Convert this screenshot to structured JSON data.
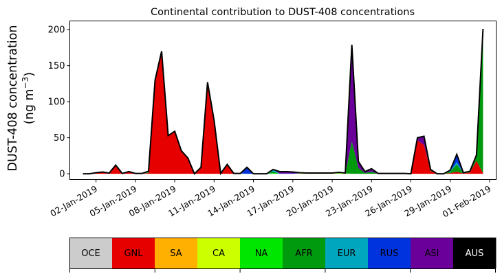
{
  "chart_data": {
    "type": "area",
    "stacked": true,
    "title": "Continental contribution to DUST-408 concentrations",
    "ylabel_line1": "DUST-408 concentration",
    "ylabel_line2": "(ng m",
    "ylabel_unit_exp": "−3",
    "ylabel_close": ")",
    "xlabel": "",
    "ylim": [
      -8,
      212
    ],
    "yticks": [
      0,
      50,
      100,
      150,
      200
    ],
    "x_start": "2019-01-01T00:00",
    "x_step_hours": 12,
    "xlim": [
      "2018-12-31T00:00",
      "2019-02-01T12:00"
    ],
    "xticks": [
      "02-Jan-2019",
      "05-Jan-2019",
      "08-Jan-2019",
      "11-Jan-2019",
      "14-Jan-2019",
      "17-Jan-2019",
      "20-Jan-2019",
      "23-Jan-2019",
      "26-Jan-2019",
      "29-Jan-2019",
      "01-Feb-2019"
    ],
    "xtick_dates": [
      "2019-01-02",
      "2019-01-05",
      "2019-01-08",
      "2019-01-11",
      "2019-01-14",
      "2019-01-17",
      "2019-01-20",
      "2019-01-23",
      "2019-01-26",
      "2019-01-29",
      "2019-02-01"
    ],
    "grid": false,
    "legend": "colorbar-bottom",
    "series": [
      {
        "name": "OCE",
        "color": "#cccccc",
        "values": [
          0,
          0,
          0,
          0,
          0,
          0,
          0,
          0,
          0,
          0,
          0,
          0,
          0,
          0,
          0,
          0,
          0,
          0,
          0,
          0,
          0,
          0,
          0,
          0,
          0,
          0,
          0,
          0,
          0,
          0,
          0,
          0,
          0,
          0,
          0,
          0,
          0,
          0,
          0,
          0,
          0,
          0,
          0,
          0,
          0,
          0,
          0,
          0,
          0,
          0,
          0,
          0,
          0,
          0,
          0,
          0,
          0,
          0,
          0,
          0,
          0,
          0
        ]
      },
      {
        "name": "GNL",
        "color": "#e60000",
        "values": [
          0,
          0,
          1,
          2,
          1,
          12,
          0.5,
          3,
          0.5,
          0.5,
          1,
          130,
          170,
          53,
          59,
          32,
          22,
          0,
          9,
          127,
          74,
          0.5,
          13,
          0,
          0,
          0,
          0,
          0,
          0,
          0,
          0,
          0,
          0,
          0,
          0,
          0,
          0,
          0,
          0,
          0,
          0,
          0,
          0,
          0,
          0,
          0,
          0,
          0,
          0,
          0,
          0,
          46,
          40,
          4,
          0,
          0,
          1,
          3,
          0.5,
          2,
          18,
          1
        ]
      },
      {
        "name": "SA",
        "color": "#ffb000",
        "values": [
          0,
          0,
          0.2,
          0.2,
          0,
          0,
          0,
          0,
          0,
          0,
          0,
          0,
          0,
          0,
          0,
          0,
          0,
          0,
          0,
          0,
          0,
          0,
          0,
          0,
          0,
          0,
          0,
          0,
          0,
          0,
          0,
          0,
          0,
          0,
          0,
          0,
          0,
          0,
          0,
          0,
          0,
          0,
          0,
          0,
          0,
          0,
          0,
          0,
          0,
          0,
          0,
          0,
          0,
          0,
          0,
          0,
          0,
          0,
          0,
          0,
          0,
          0
        ]
      },
      {
        "name": "CA",
        "color": "#ccff00",
        "values": [
          0,
          0,
          0.3,
          0.3,
          0,
          0,
          0,
          0,
          0,
          0,
          0,
          0,
          0,
          0,
          0,
          0,
          0,
          0,
          0,
          0,
          0,
          0,
          0,
          0,
          0,
          0,
          0,
          0,
          0,
          0,
          0,
          0,
          0,
          0.5,
          0.5,
          0.5,
          0.5,
          0.5,
          0.5,
          0.5,
          0.5,
          0,
          0,
          0,
          0,
          0,
          0,
          0,
          0,
          0,
          0,
          0,
          0,
          0,
          0,
          0,
          0,
          0,
          0,
          0,
          0,
          0
        ]
      },
      {
        "name": "NA",
        "color": "#00e600",
        "values": [
          0,
          0,
          0,
          0,
          0,
          0,
          0,
          0,
          0,
          0,
          0.5,
          0,
          0,
          0,
          0,
          0,
          0,
          0,
          0,
          0,
          0,
          0,
          0,
          0.5,
          0.5,
          0,
          0,
          0,
          0,
          1,
          0,
          0,
          0,
          0,
          0,
          0,
          0,
          0,
          0,
          0.5,
          0,
          0,
          0,
          0,
          0,
          0,
          0,
          0,
          0,
          0,
          0,
          0,
          0,
          0,
          0,
          0,
          0,
          0,
          0,
          0,
          0,
          0
        ]
      },
      {
        "name": "AFR",
        "color": "#009a0e",
        "values": [
          0,
          0,
          0,
          0,
          0,
          0,
          0,
          0,
          0,
          0,
          2,
          0,
          0,
          0,
          0,
          0,
          0,
          0,
          0,
          0,
          0,
          0,
          0,
          0,
          0,
          0,
          0,
          0,
          0,
          2,
          0,
          0,
          0,
          0,
          0,
          0,
          0,
          0,
          0,
          0.5,
          0,
          45,
          8,
          1,
          3,
          0,
          0,
          0,
          0,
          0,
          0,
          0,
          0,
          1,
          0,
          0,
          2,
          10,
          0.5,
          1,
          8,
          196
        ]
      },
      {
        "name": "EUR",
        "color": "#00a6bd",
        "values": [
          0,
          0,
          0,
          0,
          0,
          0,
          0,
          0,
          0,
          0,
          0,
          0,
          0,
          0,
          0,
          0,
          0,
          0,
          0,
          0,
          0,
          0,
          0,
          0,
          0,
          0,
          0,
          0,
          0,
          3,
          0,
          0,
          0,
          0,
          0,
          0,
          0,
          0,
          0,
          0,
          0,
          0,
          0,
          0,
          0,
          0,
          0,
          0,
          0,
          0,
          0,
          0,
          0,
          0,
          0,
          0,
          1,
          3,
          0,
          0,
          0,
          0
        ]
      },
      {
        "name": "RUS",
        "color": "#0033dd",
        "values": [
          0,
          0,
          0,
          0,
          0,
          0,
          0,
          0,
          0,
          0,
          0,
          0,
          0,
          0,
          0,
          0,
          0,
          0,
          0,
          0,
          0,
          0,
          0,
          0,
          0,
          9,
          0,
          0,
          0,
          0,
          0.5,
          0.5,
          0.5,
          0.5,
          0,
          0,
          0,
          0,
          0,
          0,
          0,
          0,
          0,
          0,
          0,
          0,
          0,
          0,
          0,
          0,
          0,
          0,
          0,
          0,
          0,
          0,
          1,
          10,
          0,
          0,
          0,
          0
        ]
      },
      {
        "name": "ASI",
        "color": "#6a0099",
        "values": [
          0,
          0,
          0,
          0,
          0,
          0,
          0,
          0,
          0,
          0,
          0,
          0,
          0,
          0,
          0,
          0,
          0,
          0,
          0,
          0,
          0,
          0,
          0,
          0,
          0,
          0,
          0,
          0,
          0,
          0,
          2.5,
          2.5,
          2,
          0.5,
          0.5,
          0.5,
          0.5,
          0.5,
          0.5,
          0.5,
          0.5,
          134,
          9,
          2,
          4,
          0.5,
          0.5,
          0.5,
          0.5,
          0.5,
          0,
          4,
          12,
          1,
          0,
          0,
          0,
          1,
          0.5,
          0.5,
          0,
          4
        ]
      },
      {
        "name": "AUS",
        "color": "#000000",
        "values": [
          0,
          0,
          0,
          0,
          0,
          0,
          0,
          0,
          0,
          0,
          0,
          0,
          0,
          0,
          0,
          0,
          0,
          0,
          0,
          0,
          0,
          0,
          0,
          0,
          0,
          0,
          0,
          0,
          0,
          0,
          0,
          0,
          0,
          0,
          0,
          0,
          0,
          0,
          0,
          0,
          0,
          0,
          0,
          0,
          0,
          0,
          0,
          0,
          0,
          0,
          0,
          0,
          0,
          0,
          0,
          0,
          0,
          0,
          0,
          0,
          0,
          0
        ]
      }
    ]
  }
}
